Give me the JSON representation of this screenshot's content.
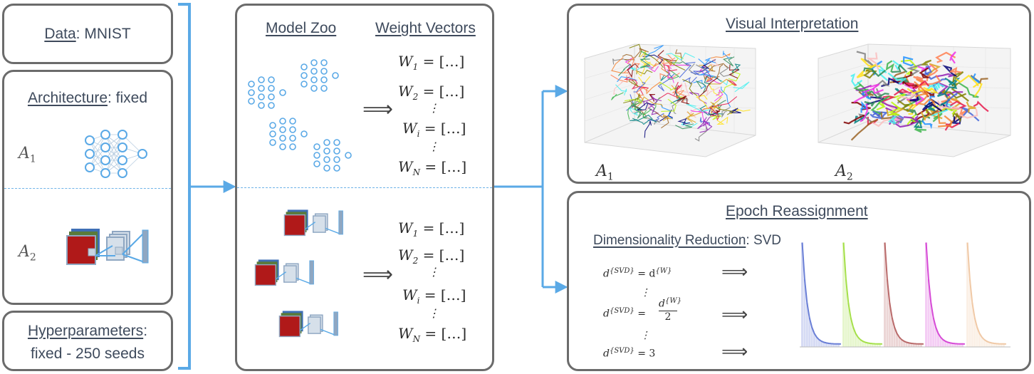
{
  "left": {
    "data_label": "Data",
    "data_value": ": MNIST",
    "arch_label": "Architecture",
    "arch_value": ": fixed",
    "a1": "A",
    "a1_sub": "1",
    "a2": "A",
    "a2_sub": "2",
    "hyper_label": "Hyperparameters",
    "hyper_colon": ":",
    "hyper_value": "fixed - 250 seeds"
  },
  "middle": {
    "model_zoo": "Model Zoo",
    "weight_vectors": "Weight Vectors",
    "implies": "⟹",
    "weights": [
      {
        "w": "W",
        "sub": "1",
        "rhs": "= […]"
      },
      {
        "w": "W",
        "sub": "2",
        "rhs": "= […]"
      },
      {
        "w": "⋮",
        "sub": "",
        "rhs": ""
      },
      {
        "w": "W",
        "sub": "i",
        "rhs": "= […]"
      },
      {
        "w": "⋮",
        "sub": "",
        "rhs": ""
      },
      {
        "w": "W",
        "sub": "N",
        "rhs": "= […]"
      }
    ]
  },
  "right_top": {
    "title": "Visual Interpretation",
    "a1": "A",
    "a1_sub": "1",
    "a2": "A",
    "a2_sub": "2"
  },
  "right_bottom": {
    "title": "Epoch Reassignment",
    "dim_label": "Dimensionality Reduction",
    "dim_value": ": SVD",
    "eq1_lhs": "d",
    "eq1_sup": "{SVD}",
    "eq1_rhs": "= d",
    "eq1_rhs_sup": "{W}",
    "eq2_lhs": "d",
    "eq2_sup": "{SVD}",
    "eq2_eq": "=",
    "eq2_num": "d",
    "eq2_num_sup": "{W}",
    "eq2_den": "2",
    "eq3_lhs": "d",
    "eq3_sup": "{SVD}",
    "eq3_rhs": "= 3",
    "vdots": "⋮",
    "implies": "⟹"
  },
  "colors": {
    "border": "#6b6b6b",
    "arrow": "#5aa9e6",
    "node": "#5aa9e6",
    "cnn_red": "#b01919",
    "cnn_green": "#5a7a3a",
    "cnn_blue": "#3f6fb5",
    "cnn_gray": "#8fa7c2"
  }
}
